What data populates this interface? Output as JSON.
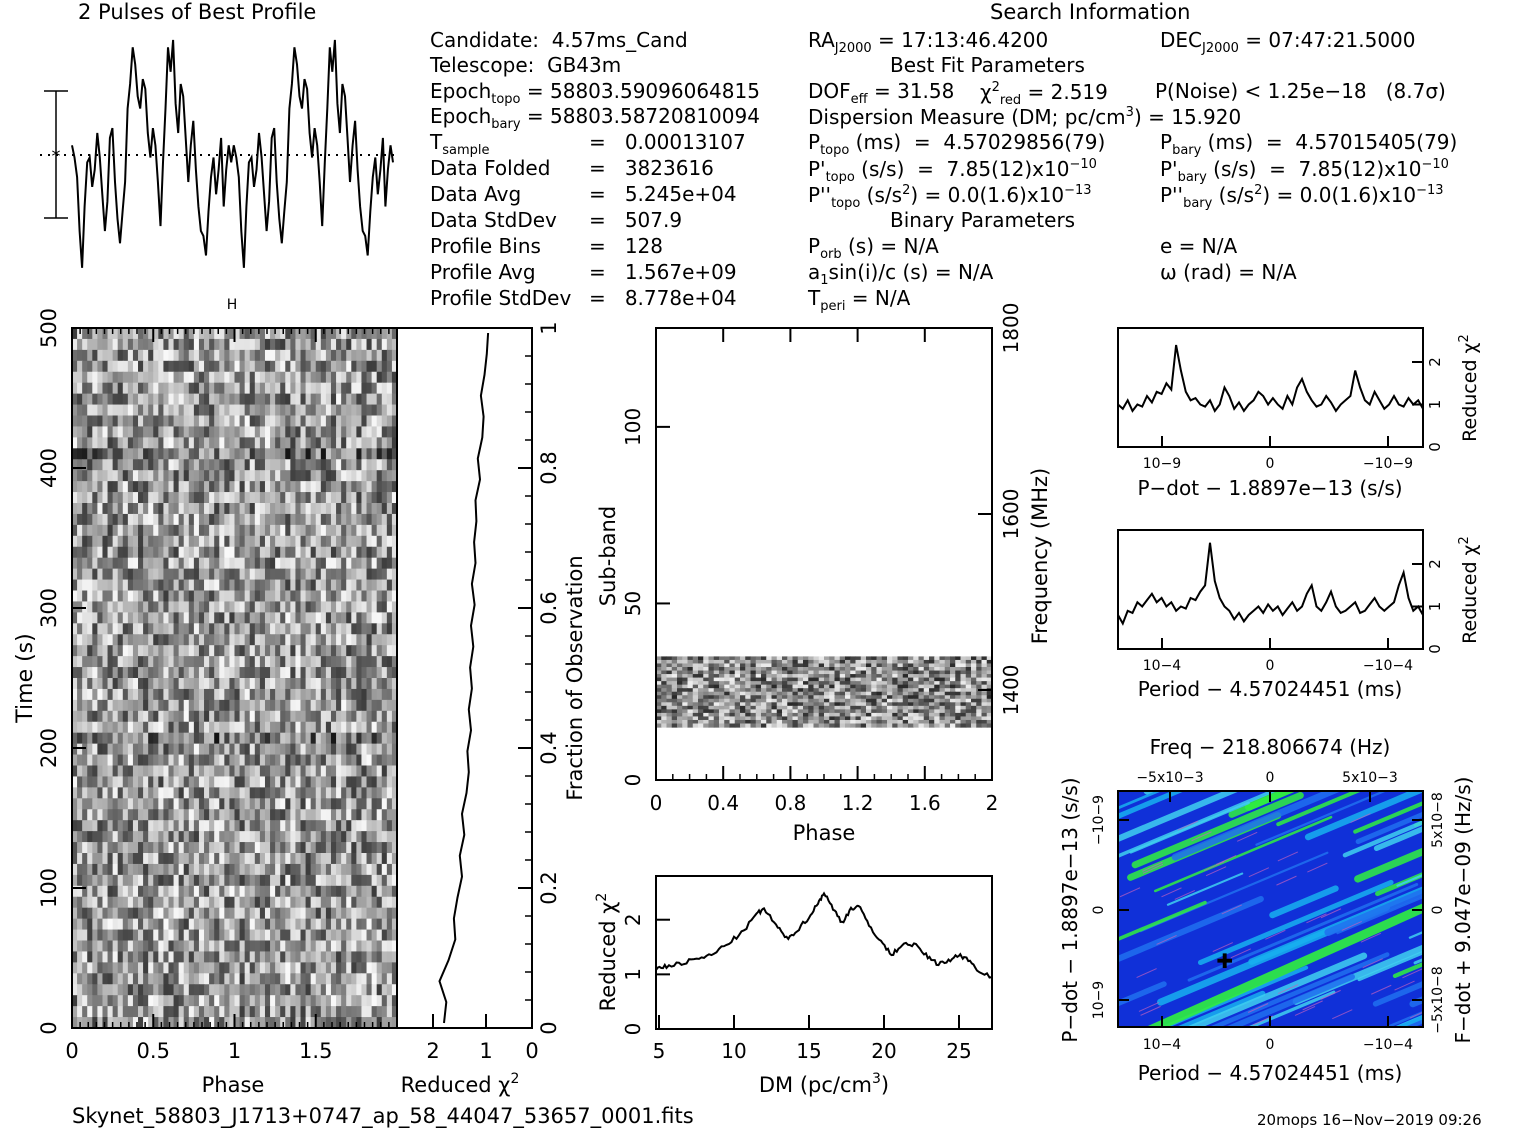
{
  "header": {
    "profile_title": "2 Pulses of Best Profile",
    "search_title": "Search Information"
  },
  "info": {
    "candidate": "Candidate:  4.57ms_Cand",
    "telescope": "Telescope:  GB43m",
    "epoch_topo_label": "Epoch",
    "epoch_topo_sub": "topo",
    "epoch_topo_val": " = 58803.59096064815",
    "epoch_bary_label": "Epoch",
    "epoch_bary_sub": "bary",
    "epoch_bary_val": " = 58803.58720810094",
    "tsample_label": "T",
    "tsample_sub": "sample",
    "tsample_val": "=   0.00013107",
    "data_folded_label": "Data Folded",
    "data_folded_val": "=   3823616",
    "data_avg_label": "Data Avg",
    "data_avg_val": "=   5.245e+04",
    "data_std_label": "Data StdDev",
    "data_std_val": "=   507.9",
    "prof_bins_label": "Profile Bins",
    "prof_bins_val": "=   128",
    "prof_avg_label": "Profile Avg",
    "prof_avg_val": "=   1.567e+09",
    "prof_std_label": "Profile StdDev",
    "prof_std_val": "=   8.778e+04"
  },
  "search": {
    "ra_label": "RA",
    "ra_sub": "J2000",
    "ra_val": " = 17:13:46.4200",
    "dec_label": "DEC",
    "dec_sub": "J2000",
    "dec_val": " = 07:47:21.5000",
    "best_fit_title": "Best Fit Parameters",
    "dof_label": "DOF",
    "dof_sub": "eff",
    "dof_val": " = 31.58",
    "chi_label": "χ",
    "chi_sup": "2",
    "chi_sub": "red",
    "chi_val": " = 2.519",
    "pnoise": "P(Noise) < 1.25e−18   (8.7σ)",
    "dm_text": "Dispersion Measure (DM; pc/cm",
    "dm_sup": "3",
    "dm_val": ") = 15.920",
    "ptopo_label": "P",
    "ptopo_sub": "topo",
    "ptopo_val": " (ms)  =  4.57029856(79)",
    "pbary_label": "P",
    "pbary_sub": "bary",
    "pbary_val": " (ms)  =  4.57015405(79)",
    "pdtopo_label": "P'",
    "pdtopo_sub": "topo",
    "pdtopo_val": " (s/s)  =  7.85(12)x10",
    "pdtopo_exp": "−10",
    "pdbary_label": "P'",
    "pdbary_sub": "bary",
    "pdbary_val": " (s/s)  =  7.85(12)x10",
    "pdbary_exp": "−10",
    "pddtopo_label": "P''",
    "pddtopo_sub": "topo",
    "pddtopo_val": " (s/s",
    "pddtopo_sup": "2",
    "pddtopo_val2": ") = 0.0(1.6)x10",
    "pddtopo_exp": "−13",
    "pddbary_label": "P''",
    "pddbary_sub": "bary",
    "pddbary_val": " (s/s",
    "pddbary_sup": "2",
    "pddbary_val2": ") = 0.0(1.6)x10",
    "pddbary_exp": "−13",
    "binary_title": "Binary Parameters",
    "porb_label": "P",
    "porb_sub": "orb",
    "porb_val": " (s) = N/A",
    "ecc": "e = N/A",
    "a1_label": "a",
    "a1_sub": "1",
    "a1_val": "sin(i)/c (s) = N/A",
    "omega": "ω (rad) = N/A",
    "tperi_label": "T",
    "tperi_sub": "peri",
    "tperi_val": " = N/A"
  },
  "footer": {
    "filename": "Skynet_58803_J1713+0747_ap_58_44047_53657_0001.fits",
    "stamp": "20mops 16−Nov−2019 09:26"
  },
  "colors": {
    "ink": "#000000",
    "heat_low": "#1030d8",
    "heat_mid": "#18b0f0",
    "heat_high": "#30f040"
  },
  "chart_data": [
    {
      "type": "line",
      "title": "2 Pulses of Best Profile",
      "x_range": [
        0,
        2
      ],
      "series": [
        {
          "values": [
            0.55,
            0.5,
            0.42,
            0.2,
            0.05,
            0.3,
            0.48,
            0.5,
            0.38,
            0.45,
            0.6,
            0.5,
            0.35,
            0.2,
            0.32,
            0.58,
            0.62,
            0.4,
            0.25,
            0.15,
            0.28,
            0.4,
            0.7,
            0.8,
            0.95,
            0.88,
            0.75,
            0.7,
            0.82,
            0.78,
            0.6,
            0.5,
            0.62,
            0.55,
            0.4,
            0.22,
            0.48,
            0.7,
            0.95,
            0.85,
            0.98,
            0.72,
            0.6,
            0.8,
            0.75,
            0.58,
            0.4,
            0.55,
            0.65,
            0.45,
            0.3,
            0.2,
            0.18,
            0.1,
            0.28,
            0.42,
            0.5,
            0.35,
            0.45,
            0.58,
            0.3,
            0.45,
            0.55,
            0.48,
            0.55,
            0.5,
            0.42,
            0.2,
            0.05,
            0.3,
            0.48,
            0.5,
            0.38,
            0.45,
            0.6,
            0.5,
            0.35,
            0.2,
            0.32,
            0.58,
            0.62,
            0.4,
            0.25,
            0.15,
            0.28,
            0.4,
            0.7,
            0.8,
            0.95,
            0.88,
            0.75,
            0.7,
            0.82,
            0.78,
            0.6,
            0.5,
            0.62,
            0.55,
            0.4,
            0.22,
            0.48,
            0.7,
            0.95,
            0.85,
            0.98,
            0.72,
            0.6,
            0.8,
            0.75,
            0.58,
            0.4,
            0.55,
            0.65,
            0.45,
            0.3,
            0.2,
            0.18,
            0.1,
            0.28,
            0.42,
            0.5,
            0.35,
            0.45,
            0.58,
            0.3,
            0.45,
            0.55,
            0.48
          ]
        }
      ]
    },
    {
      "type": "heatmap",
      "xlabel": "Phase",
      "ylabel": "Time (s)",
      "xlim": [
        0,
        2
      ],
      "ylim": [
        0,
        500
      ],
      "x_ticks": [
        "0",
        "0.5",
        "1",
        "1.5"
      ],
      "y_ticks": [
        "0",
        "100",
        "200",
        "300",
        "400",
        "500"
      ],
      "right_ylabel": "Fraction of Observation",
      "right_ticks": [
        "0",
        "0.2",
        "0.4",
        "0.6",
        "0.8",
        "1"
      ]
    },
    {
      "type": "line",
      "xlabel": "Reduced χ2",
      "x_ticks": [
        "2",
        "1",
        "0"
      ],
      "x_range": [
        0,
        3
      ],
      "series": [
        {
          "values": [
            1.0,
            0.95,
            1.1,
            0.9,
            0.75,
            0.78,
            0.7,
            0.6,
            0.65,
            0.55,
            0.6,
            0.5,
            0.45,
            0.48,
            0.4,
            0.45,
            0.38,
            0.42,
            0.35,
            0.4,
            0.32,
            0.38,
            0.3,
            0.33,
            0.28,
            0.3,
            0.2,
            0.25,
            0.15,
            0.12,
            0.18,
            0.1,
            0.05,
            0.02
          ]
        }
      ]
    },
    {
      "type": "heatmap",
      "xlabel": "Phase",
      "ylabel": "Sub-band",
      "right_ylabel": "Frequency (MHz)",
      "xlim": [
        0,
        2
      ],
      "ylim": [
        0,
        128
      ],
      "band": [
        15,
        35
      ],
      "x_ticks": [
        "0",
        "0.4",
        "0.8",
        "1.2",
        "1.6",
        "2"
      ],
      "y_ticks": [
        "0",
        "50",
        "100"
      ],
      "right_ticks": [
        "1400",
        "1600",
        "1800"
      ]
    },
    {
      "type": "line",
      "xlabel": "DM (pc/cm3)",
      "ylabel": "Reduced χ2",
      "xlim": [
        4.8,
        27.2
      ],
      "ylim": [
        0,
        2.8
      ],
      "x_ticks": [
        "5",
        "10",
        "15",
        "20",
        "25"
      ],
      "y_ticks": [
        "0",
        "1",
        "2"
      ],
      "x": [
        4.8,
        5.5,
        6.5,
        7.5,
        8.5,
        9.5,
        10.5,
        11.5,
        12,
        12.8,
        13.5,
        14.2,
        15,
        15.6,
        16,
        16.6,
        17.2,
        17.8,
        18.3,
        19,
        19.8,
        20.5,
        21.2,
        22,
        22.8,
        23.5,
        24.3,
        25,
        25.5,
        26.2,
        27.2
      ],
      "series": [
        {
          "values": [
            1.1,
            1.15,
            1.2,
            1.28,
            1.35,
            1.55,
            1.75,
            2.1,
            2.2,
            1.9,
            1.65,
            1.8,
            2.05,
            2.3,
            2.5,
            2.2,
            1.95,
            2.2,
            2.25,
            1.9,
            1.6,
            1.35,
            1.55,
            1.55,
            1.35,
            1.2,
            1.25,
            1.35,
            1.3,
            1.1,
            0.95
          ]
        }
      ]
    },
    {
      "type": "line",
      "xlabel": "P−dot − 1.8897e−13 (s/s)",
      "ylabel": "Reduced χ2",
      "ylim": [
        0,
        2.8
      ],
      "x_ticks": [
        "10−9",
        "0",
        "−10−9"
      ],
      "y_ticks": [
        "0",
        "1",
        "2"
      ],
      "series": [
        {
          "values": [
            1.0,
            0.9,
            1.1,
            0.85,
            1.0,
            0.95,
            1.2,
            1.05,
            1.3,
            1.25,
            1.5,
            1.35,
            2.4,
            1.8,
            1.3,
            1.1,
            1.15,
            1.0,
            0.95,
            1.1,
            0.85,
            1.0,
            1.4,
            1.2,
            0.9,
            1.05,
            0.85,
            1.0,
            1.1,
            1.3,
            1.2,
            1.0,
            1.15,
            1.0,
            0.9,
            1.2,
            1.0,
            1.4,
            1.6,
            1.3,
            1.1,
            0.95,
            1.0,
            1.2,
            1.05,
            0.85,
            1.0,
            1.1,
            1.2,
            1.8,
            1.4,
            1.1,
            1.0,
            1.3,
            1.1,
            0.9,
            1.0,
            1.2,
            1.0,
            0.95,
            1.15,
            1.0,
            1.1,
            0.9
          ]
        }
      ]
    },
    {
      "type": "line",
      "xlabel": "Period − 4.57024451 (ms)",
      "ylabel": "Reduced χ2",
      "ylim": [
        0,
        2.8
      ],
      "x_ticks": [
        "10−4",
        "0",
        "−10−4"
      ],
      "y_ticks": [
        "0",
        "1",
        "2"
      ],
      "series": [
        {
          "values": [
            0.8,
            0.6,
            0.9,
            0.85,
            1.1,
            1.0,
            1.15,
            1.3,
            1.1,
            1.2,
            1.0,
            1.1,
            0.9,
            1.0,
            0.95,
            1.2,
            1.15,
            1.35,
            1.5,
            2.5,
            1.6,
            1.2,
            1.0,
            0.9,
            0.7,
            0.85,
            0.65,
            0.8,
            0.9,
            1.0,
            0.85,
            1.05,
            0.9,
            1.0,
            0.8,
            0.95,
            1.1,
            0.9,
            1.0,
            1.3,
            1.5,
            1.0,
            0.9,
            1.1,
            1.35,
            1.0,
            0.85,
            0.9,
            1.0,
            1.1,
            0.85,
            0.9,
            1.05,
            1.2,
            1.0,
            0.9,
            1.0,
            1.1,
            1.5,
            1.8,
            1.2,
            0.9,
            1.0,
            0.8
          ]
        }
      ]
    },
    {
      "type": "heatmap",
      "title": "Freq − 218.806674 (Hz)",
      "xlabel": "Period − 4.57024451 (ms)",
      "ylabel": "P−dot − 1.8897e−13 (s/s)",
      "right_ylabel": "F−dot + 9.047e−09 (Hz/s)",
      "top_ticks": [
        "−5x10−3",
        "0",
        "5x10−3"
      ],
      "x_ticks": [
        "10−4",
        "0",
        "−10−4"
      ],
      "y_ticks": [
        "10−9",
        "0",
        "−10−9"
      ],
      "right_ticks": [
        "−5x10−8",
        "0",
        "5x10−8"
      ],
      "best": [
        0.35,
        0.28
      ]
    }
  ]
}
